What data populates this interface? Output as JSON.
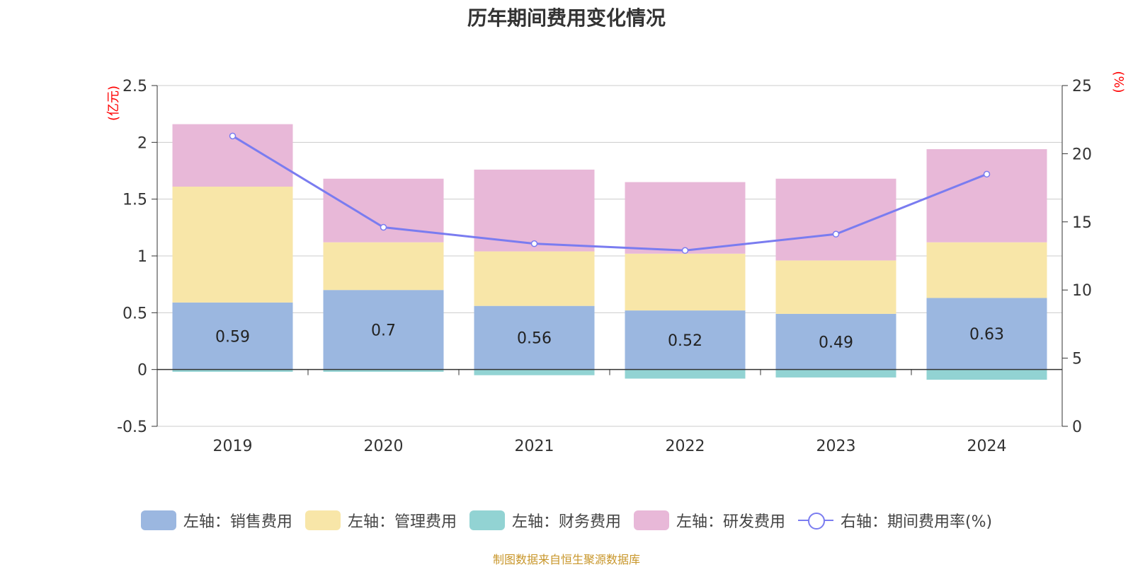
{
  "title": "历年期间费用变化情况",
  "source": "制图数据来自恒生聚源数据库",
  "colors": {
    "sales": "#9bb7e0",
    "admin": "#f8e6a8",
    "finance": "#92d3d3",
    "rd": "#e8b8d8",
    "ratio": "#7a7cf0",
    "axis_unit": "#ff0000"
  },
  "chart_data": {
    "type": "bar",
    "stacked": true,
    "categories": [
      "2019",
      "2020",
      "2021",
      "2022",
      "2023",
      "2024"
    ],
    "left_axis": {
      "unit": "(亿元)",
      "ylim": [
        -0.5,
        2.5
      ],
      "ticks": [
        "-0.5",
        "0",
        "0.5",
        "1",
        "1.5",
        "2",
        "2.5"
      ],
      "tick_values": [
        -0.5,
        0,
        0.5,
        1,
        1.5,
        2,
        2.5
      ]
    },
    "right_axis": {
      "unit": "(%)",
      "ylim": [
        0,
        25
      ],
      "ticks": [
        "0",
        "5",
        "10",
        "15",
        "20",
        "25"
      ],
      "tick_values": [
        0,
        5,
        10,
        15,
        20,
        25
      ]
    },
    "series": [
      {
        "name": "左轴：销售费用",
        "key": "sales",
        "axis": "left",
        "values": [
          0.59,
          0.7,
          0.56,
          0.52,
          0.49,
          0.63
        ],
        "labels": [
          "0.59",
          "0.7",
          "0.56",
          "0.52",
          "0.49",
          "0.63"
        ]
      },
      {
        "name": "左轴：管理费用",
        "key": "admin",
        "axis": "left",
        "values": [
          1.02,
          0.42,
          0.48,
          0.5,
          0.47,
          0.49
        ]
      },
      {
        "name": "左轴：财务费用",
        "key": "finance",
        "axis": "left",
        "values": [
          -0.02,
          -0.02,
          -0.05,
          -0.08,
          -0.07,
          -0.09
        ]
      },
      {
        "name": "左轴：研发费用",
        "key": "rd",
        "axis": "left",
        "values": [
          0.55,
          0.56,
          0.72,
          0.63,
          0.72,
          0.82
        ]
      },
      {
        "name": "右轴：期间费用率(%)",
        "key": "ratio",
        "axis": "right",
        "type": "line",
        "values": [
          21.3,
          14.6,
          13.4,
          12.9,
          14.1,
          18.5
        ]
      }
    ]
  }
}
